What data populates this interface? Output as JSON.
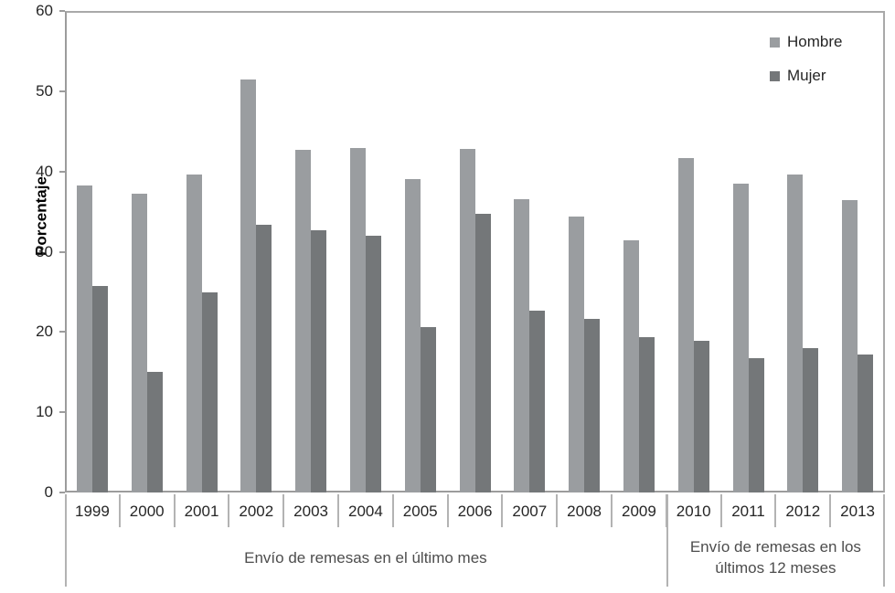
{
  "chart_data": {
    "type": "bar",
    "title": "",
    "xlabel": "",
    "ylabel": "Porcentaje",
    "ylim": [
      0,
      60
    ],
    "yticks": [
      0,
      10,
      20,
      30,
      40,
      50,
      60
    ],
    "grid": false,
    "legend_position": "top-right",
    "categories": [
      "1999",
      "2000",
      "2001",
      "2002",
      "2003",
      "2004",
      "2005",
      "2006",
      "2007",
      "2008",
      "2009",
      "2010",
      "2011",
      "2012",
      "2013"
    ],
    "series": [
      {
        "name": "Hombre",
        "color": "#9a9da0",
        "values": [
          38.3,
          37.2,
          39.6,
          51.5,
          42.7,
          42.9,
          39.0,
          42.8,
          36.6,
          34.4,
          31.4,
          41.7,
          38.5,
          39.6,
          36.4
        ]
      },
      {
        "name": "Mujer",
        "color": "#747779",
        "values": [
          25.7,
          15.0,
          24.9,
          33.4,
          32.7,
          32.0,
          20.6,
          34.7,
          22.7,
          21.6,
          19.3,
          18.9,
          16.7,
          18.0,
          17.2
        ]
      }
    ],
    "groups": [
      {
        "label": "Envío de remesas en el último mes",
        "span": 11
      },
      {
        "label": "Envío de remesas en los últimos 12 meses",
        "span": 4
      }
    ],
    "colors": {
      "axis_line": "#9c9c9c",
      "separator": "#b3b3b3",
      "hombre": "#9a9da0",
      "mujer": "#747779"
    }
  }
}
